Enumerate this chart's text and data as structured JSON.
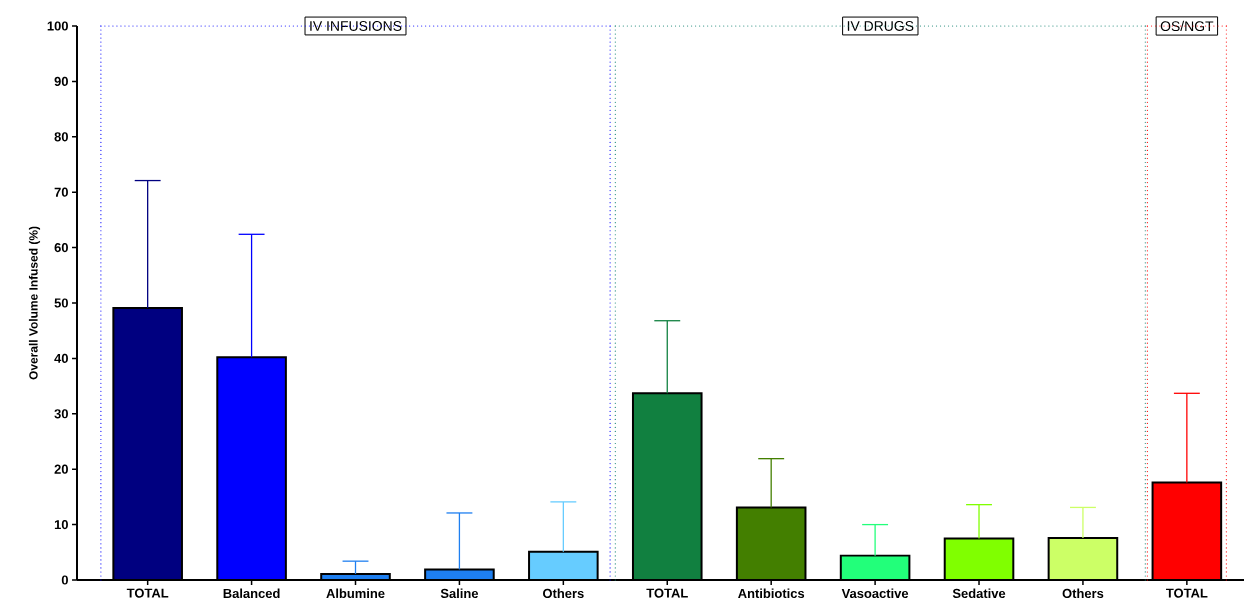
{
  "chart_data": {
    "type": "bar",
    "ylabel": "Overall Volume Infused (%)",
    "categories": [
      "TOTAL",
      "Balanced",
      "Albumine",
      "Saline",
      "Others",
      "TOTAL",
      "Antibiotics",
      "Vasoactive",
      "Sedative",
      "Others",
      "TOTAL"
    ],
    "values": [
      49.1,
      40.2,
      1.1,
      1.9,
      5.1,
      33.7,
      13.1,
      4.4,
      7.5,
      7.6,
      17.6
    ],
    "errors": [
      [
        49.1,
        72.1
      ],
      [
        40.2,
        62.4
      ],
      [
        1.1,
        3.4
      ],
      [
        1.9,
        12.1
      ],
      [
        5.1,
        14.1
      ],
      [
        33.7,
        46.8
      ],
      [
        13.1,
        21.9
      ],
      [
        4.4,
        10.0
      ],
      [
        7.5,
        13.6
      ],
      [
        7.6,
        13.1
      ],
      [
        17.6,
        33.7
      ]
    ],
    "colors": [
      "#000080",
      "#0000ff",
      "#1e7ff0",
      "#1e7ff0",
      "#66ccff",
      "#118040",
      "#437f00",
      "#22ff7a",
      "#80ff00",
      "#ccff66",
      "#ff0000"
    ],
    "ylim": [
      0,
      100
    ],
    "yticks": [
      0,
      10,
      20,
      30,
      40,
      50,
      60,
      70,
      80,
      90,
      100
    ],
    "annotations": [
      "IV INFUSIONS",
      "IV DRUGS",
      "OS/NGT"
    ]
  }
}
